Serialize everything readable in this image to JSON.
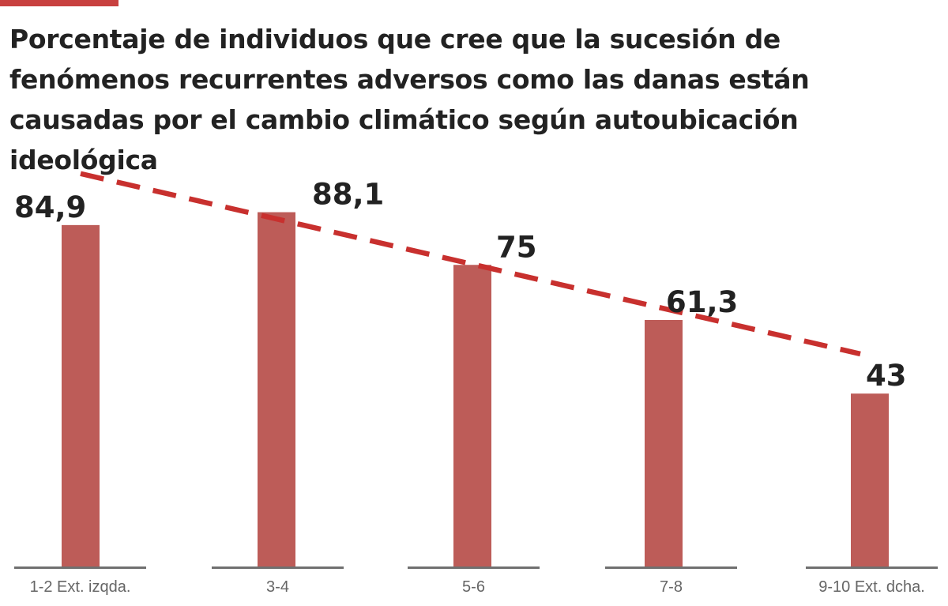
{
  "colors": {
    "accent": "#c8403f",
    "bar": "#bd5c58",
    "trend": "#c8302e",
    "baseline": "#707070",
    "text": "#222222",
    "category_text": "#666666"
  },
  "chart_data": {
    "type": "bar",
    "title": "Porcentaje de individuos que cree que la sucesión de fenómenos recurrentes adversos como las danas están causadas por el cambio climático según autoubicación ideológica",
    "categories": [
      "1-2 Ext. izqda.",
      "3-4",
      "5-6",
      "7-8",
      "9-10 Ext. dcha."
    ],
    "values": [
      84.9,
      88.1,
      75,
      61.3,
      43
    ],
    "value_labels": [
      "84,9",
      "88,1",
      "75",
      "61,3",
      "43"
    ],
    "trendline": "linear",
    "ylim": [
      0,
      100
    ],
    "grid": false,
    "legend": "none"
  }
}
